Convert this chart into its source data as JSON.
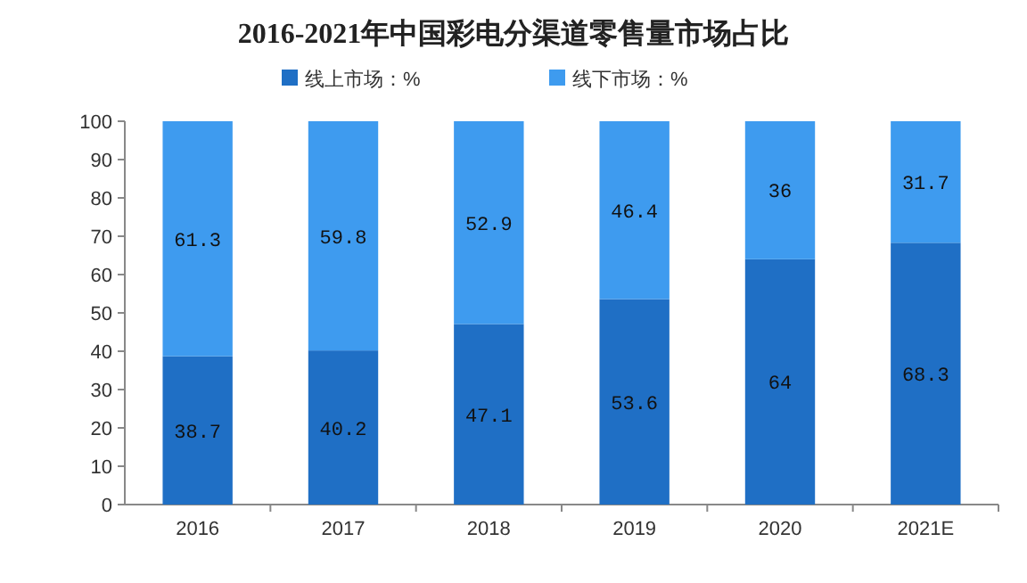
{
  "chart_data": {
    "type": "bar",
    "title": "2016-2021年中国彩电分渠道零售量市场占比",
    "categories": [
      "2016",
      "2017",
      "2018",
      "2019",
      "2020",
      "2021E"
    ],
    "series": [
      {
        "name": "线上市场：%",
        "color": "#1f6fc5",
        "values": [
          38.7,
          40.2,
          47.1,
          53.6,
          64,
          68.3
        ]
      },
      {
        "name": "线下市场：%",
        "color": "#3e9bef",
        "values": [
          61.3,
          59.8,
          52.9,
          46.4,
          36,
          31.7
        ]
      }
    ],
    "stacked": true,
    "ylim": [
      0,
      100
    ],
    "yticks": [
      0,
      10,
      20,
      30,
      40,
      50,
      60,
      70,
      80,
      90,
      100
    ],
    "data_labels": true,
    "legend": "top"
  }
}
